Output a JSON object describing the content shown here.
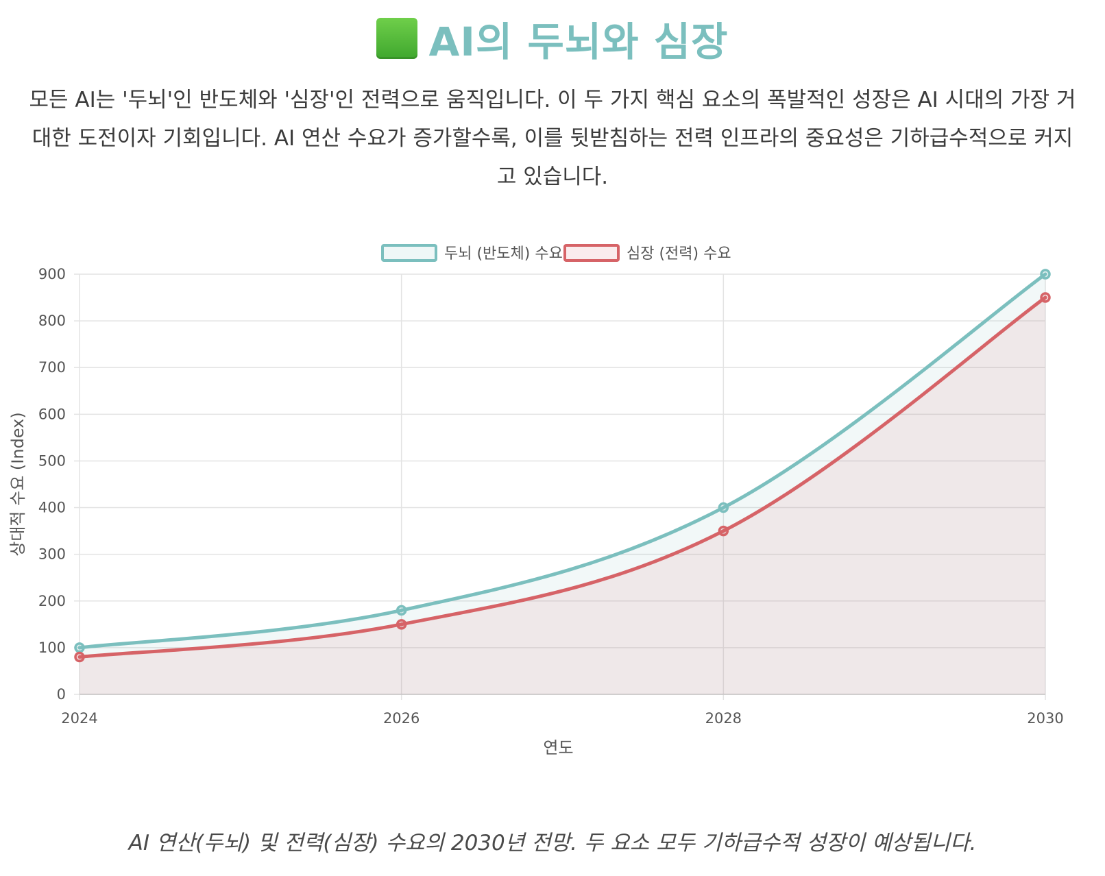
{
  "header": {
    "title": "AI의 두뇌와 심장",
    "icon": "green-square-icon",
    "intro": "모든 AI는 '두뇌'인 반도체와 '심장'인 전력으로 움직입니다. 이 두 가지 핵심 요소의 폭발적인 성장은 AI 시대의 가장 거대한 도전이자 기회입니다. AI 연산 수요가 증가할수록, 이를 뒷받침하는 전력 인프라의 중요성은 기하급수적으로 커지고 있습니다."
  },
  "chart_data": {
    "type": "line",
    "x": [
      "2024",
      "2026",
      "2028",
      "2030"
    ],
    "series": [
      {
        "name": "두뇌 (반도체) 수요",
        "values": [
          100,
          180,
          400,
          900
        ],
        "color": "#7bbfbe",
        "fill": "rgba(123,191,190,0.10)"
      },
      {
        "name": "심장 (전력) 수요",
        "values": [
          80,
          150,
          350,
          850
        ],
        "color": "#d66367",
        "fill": "rgba(214,99,103,0.10)"
      }
    ],
    "xlabel": "연도",
    "ylabel": "상대적 수요 (Index)",
    "ylim": [
      0,
      900
    ],
    "yticks": [
      0,
      100,
      200,
      300,
      400,
      500,
      600,
      700,
      800,
      900
    ],
    "grid": true,
    "legend": "top-center",
    "curve": "smooth",
    "area_fill": true
  },
  "caption": "AI 연산(두뇌) 및 전력(심장) 수요의 2030년 전망. 두 요소 모두 기하급수적 성장이 예상됩니다."
}
